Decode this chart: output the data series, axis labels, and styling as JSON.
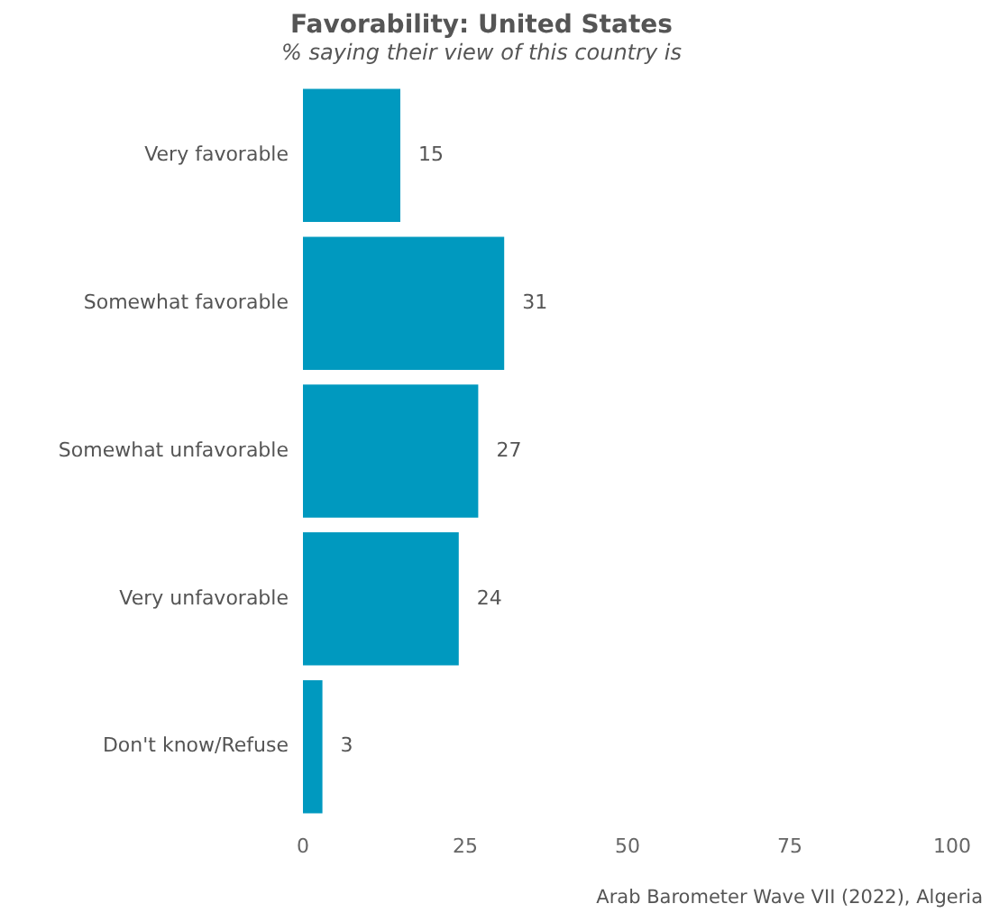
{
  "chart_data": {
    "type": "bar",
    "orientation": "horizontal",
    "title": "Favorability: United States",
    "subtitle": "% saying their view of this country is",
    "categories": [
      "Very favorable",
      "Somewhat favorable",
      "Somewhat unfavorable",
      "Very unfavorable",
      "Don't know/Refuse"
    ],
    "values": [
      15,
      31,
      27,
      24,
      3
    ],
    "color": "#0099bf",
    "xlim": [
      0,
      100
    ],
    "xticks": [
      0,
      25,
      50,
      75,
      100
    ],
    "grid": false,
    "legend": false,
    "data_labels": true,
    "annotations": [
      "Arab Barometer Wave VII (2022), Algeria"
    ]
  }
}
